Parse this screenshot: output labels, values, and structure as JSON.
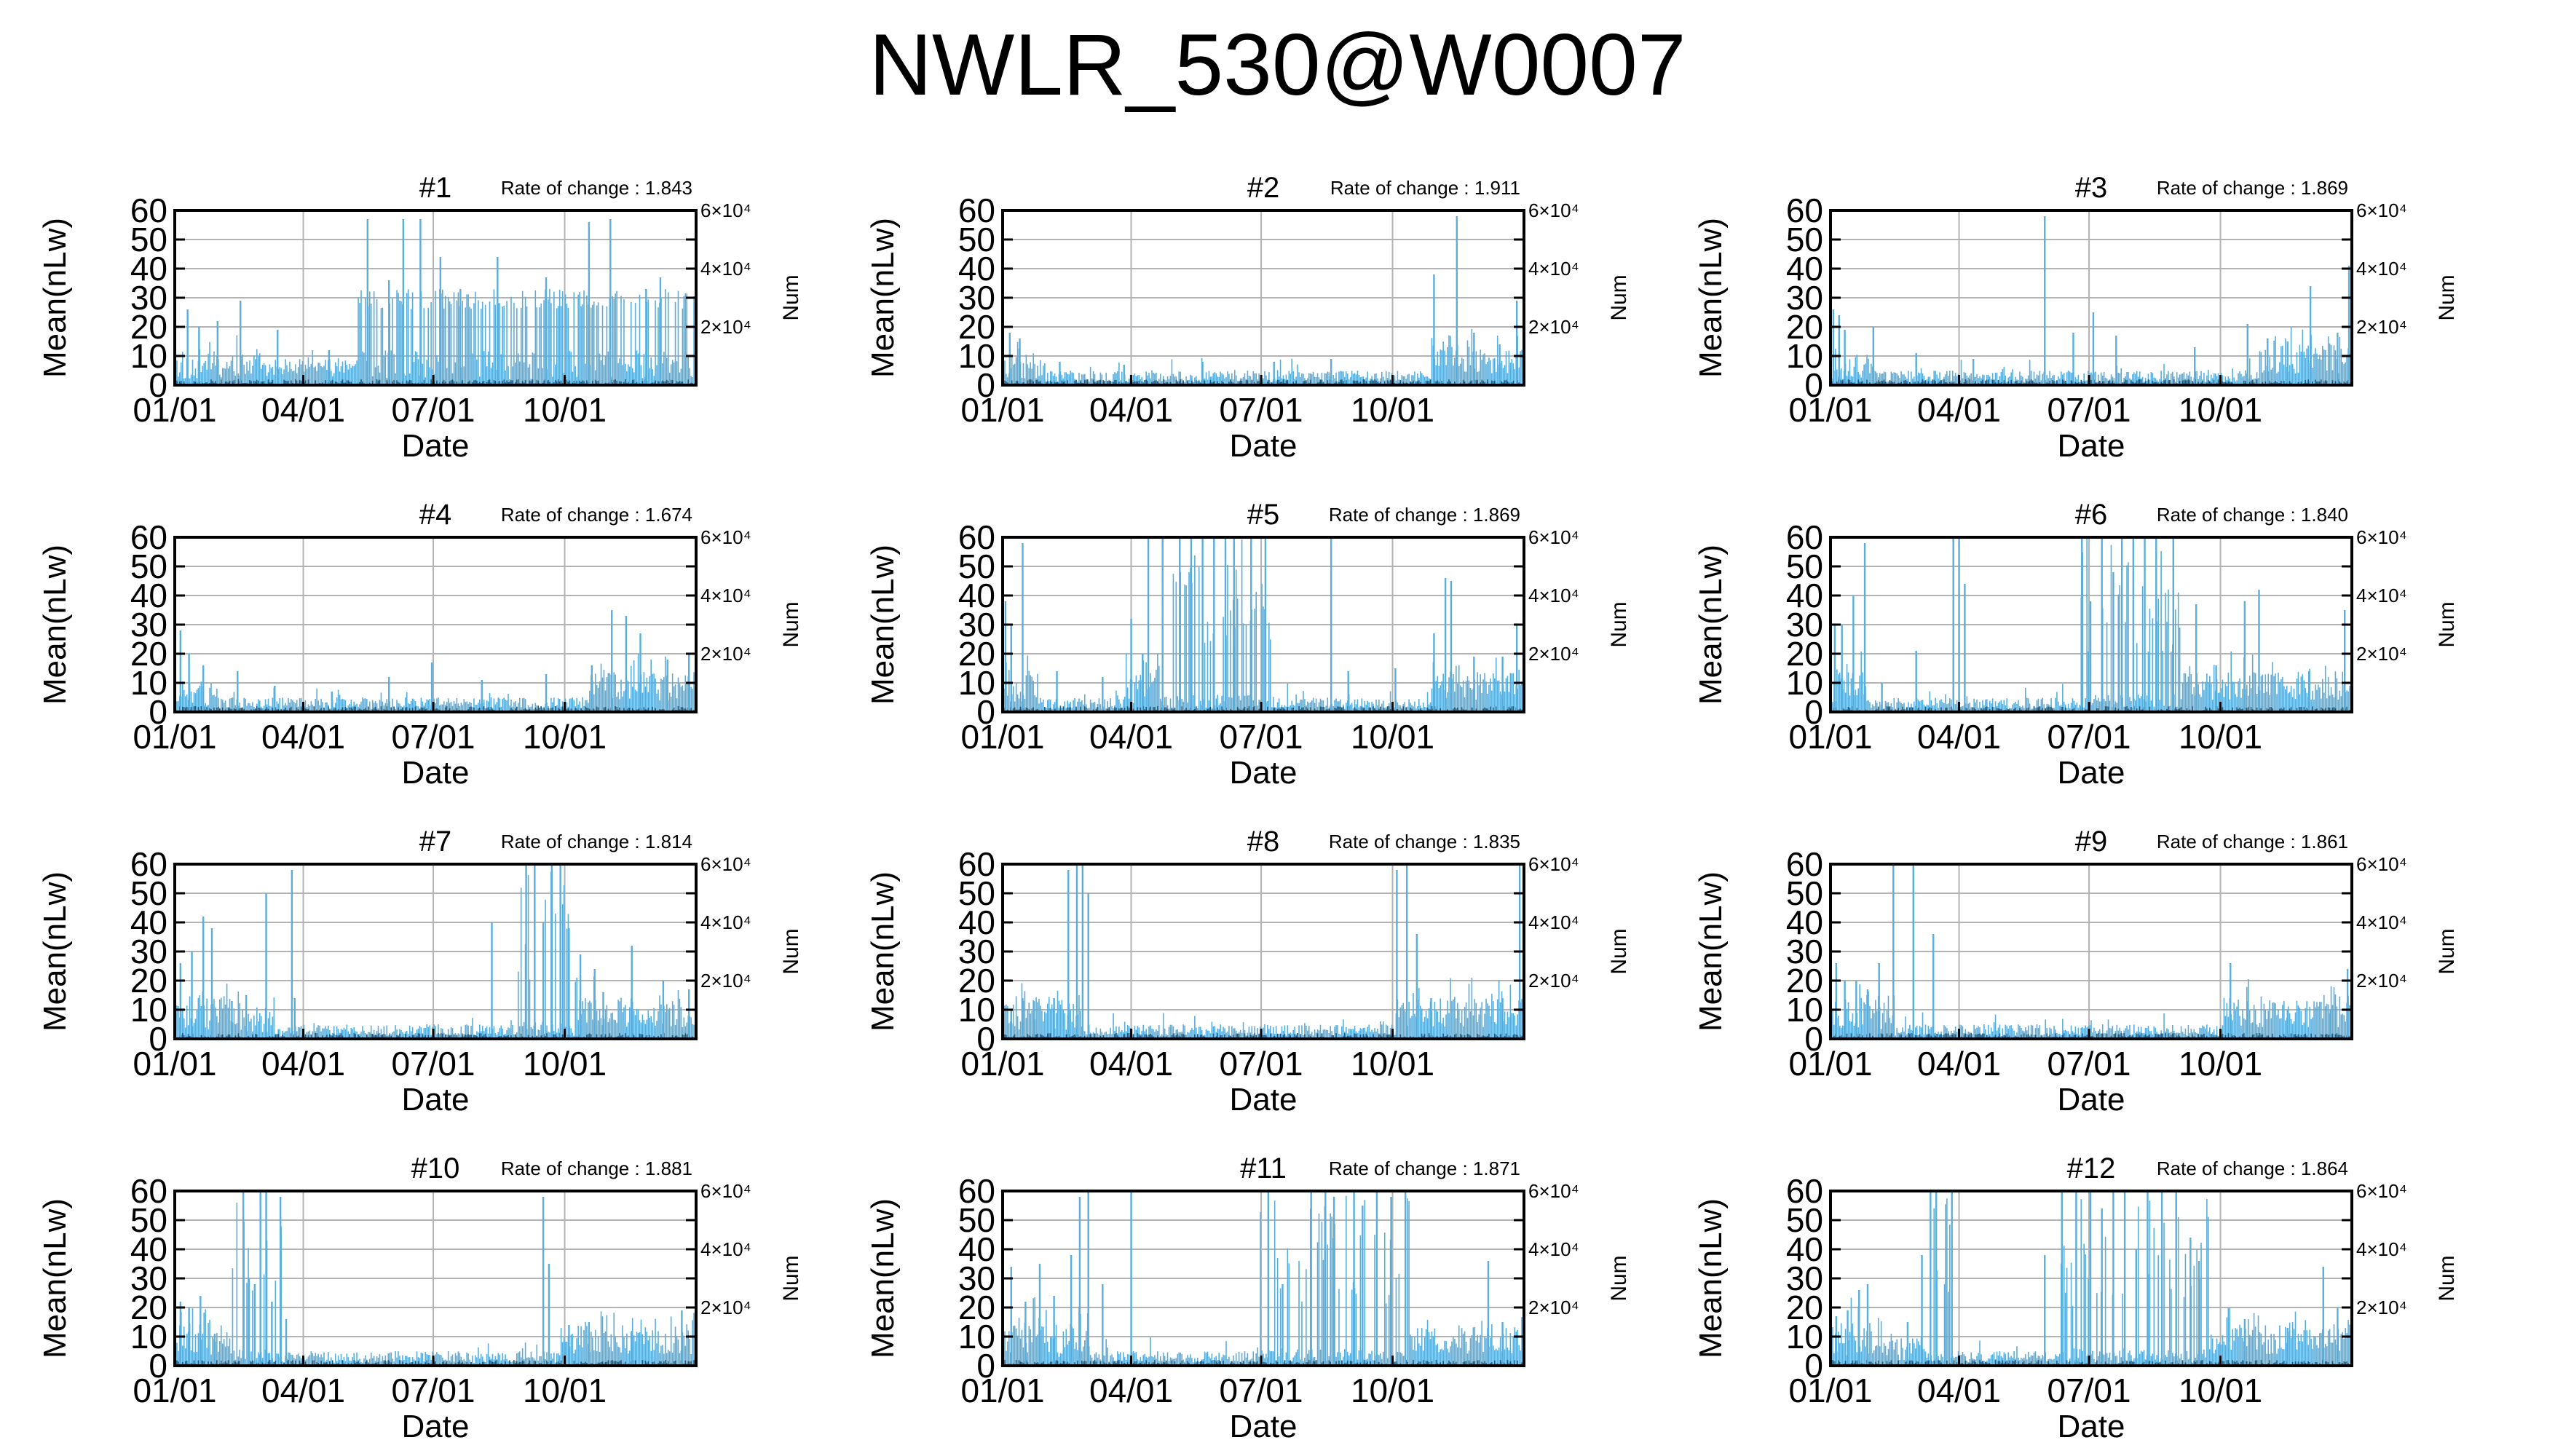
{
  "title": "NWLR_530@W0007",
  "colors": {
    "bar": "#5aaedc",
    "dark": "#1a5a80",
    "axis": "#000000",
    "grid": "#b3b3b3"
  },
  "shared": {
    "xlabel": "Date",
    "ylabel": "Mean(nLw)",
    "y2label": "Num",
    "rate_prefix": "Rate of change : ",
    "y_ticks": [
      0,
      10,
      20,
      30,
      40,
      50,
      60
    ],
    "ylim": [
      0,
      60
    ],
    "x_ticks": [
      "01/01",
      "04/01",
      "07/01",
      "10/01"
    ],
    "x_domain_days": [
      0,
      365
    ],
    "x_tick_days": [
      0,
      90,
      181,
      273
    ],
    "y2_ticks": [
      "2×10⁴",
      "4×10⁴",
      "6×10⁴"
    ],
    "y2_values": [
      20000,
      40000,
      60000
    ],
    "y2lim": [
      0,
      60000
    ]
  },
  "chart_data": [
    {
      "type": "bar",
      "title": "#1",
      "rate": "1.843",
      "profile": [
        [
          0,
          60,
          "low"
        ],
        [
          60,
          125,
          "low2"
        ],
        [
          125,
          365,
          "high"
        ]
      ],
      "spikes": [
        [
          9,
          26
        ],
        [
          17,
          20
        ],
        [
          30,
          22
        ],
        [
          46,
          29
        ],
        [
          72,
          19
        ],
        [
          108,
          12
        ],
        [
          135,
          57
        ],
        [
          150,
          36
        ],
        [
          160,
          57
        ],
        [
          172,
          57
        ],
        [
          186,
          44
        ],
        [
          200,
          33
        ],
        [
          226,
          44
        ],
        [
          260,
          37
        ],
        [
          290,
          56
        ],
        [
          305,
          57
        ],
        [
          330,
          33
        ],
        [
          340,
          37
        ]
      ],
      "seed": 11
    },
    {
      "type": "bar",
      "title": "#2",
      "rate": "1.911",
      "profile": [
        [
          0,
          30,
          "low"
        ],
        [
          30,
          300,
          "vlow"
        ],
        [
          300,
          365,
          "rise"
        ]
      ],
      "spikes": [
        [
          5,
          18
        ],
        [
          12,
          16
        ],
        [
          40,
          8
        ],
        [
          85,
          7
        ],
        [
          140,
          8
        ],
        [
          190,
          8
        ],
        [
          230,
          9
        ],
        [
          302,
          38
        ],
        [
          318,
          58
        ],
        [
          330,
          18
        ],
        [
          348,
          14
        ],
        [
          360,
          29
        ]
      ],
      "seed": 23
    },
    {
      "type": "bar",
      "title": "#3",
      "rate": "1.869",
      "profile": [
        [
          0,
          30,
          "low"
        ],
        [
          30,
          300,
          "vlow"
        ],
        [
          300,
          365,
          "rise"
        ]
      ],
      "spikes": [
        [
          2,
          26
        ],
        [
          6,
          24
        ],
        [
          10,
          19
        ],
        [
          30,
          20
        ],
        [
          60,
          11
        ],
        [
          100,
          9
        ],
        [
          150,
          58
        ],
        [
          170,
          18
        ],
        [
          184,
          25
        ],
        [
          200,
          17
        ],
        [
          255,
          13
        ],
        [
          292,
          21
        ],
        [
          306,
          16
        ],
        [
          320,
          15
        ],
        [
          336,
          34
        ],
        [
          355,
          18
        ],
        [
          363,
          41
        ]
      ],
      "seed": 37
    },
    {
      "type": "bar",
      "title": "#4",
      "rate": "1.674",
      "profile": [
        [
          0,
          30,
          "low"
        ],
        [
          30,
          290,
          "vlow"
        ],
        [
          290,
          365,
          "rise"
        ]
      ],
      "spikes": [
        [
          4,
          28
        ],
        [
          10,
          20
        ],
        [
          20,
          16
        ],
        [
          44,
          14
        ],
        [
          70,
          9
        ],
        [
          110,
          7
        ],
        [
          150,
          12
        ],
        [
          180,
          17
        ],
        [
          215,
          11
        ],
        [
          260,
          13
        ],
        [
          292,
          16
        ],
        [
          306,
          35
        ],
        [
          316,
          33
        ],
        [
          326,
          27
        ],
        [
          345,
          18
        ],
        [
          360,
          20
        ]
      ],
      "seed": 41
    },
    {
      "type": "bar",
      "title": "#5",
      "rate": "1.869",
      "profile": [
        [
          0,
          25,
          "mid"
        ],
        [
          25,
          85,
          "vlow"
        ],
        [
          85,
          110,
          "mid"
        ],
        [
          110,
          190,
          "wild"
        ],
        [
          190,
          300,
          "vlow"
        ],
        [
          300,
          365,
          "rise"
        ]
      ],
      "spikes": [
        [
          2,
          38
        ],
        [
          6,
          30
        ],
        [
          14,
          58
        ],
        [
          38,
          14
        ],
        [
          70,
          12
        ],
        [
          90,
          32
        ],
        [
          98,
          20
        ],
        [
          102,
          60
        ],
        [
          112,
          60
        ],
        [
          124,
          60
        ],
        [
          132,
          60
        ],
        [
          140,
          60
        ],
        [
          148,
          60
        ],
        [
          156,
          60
        ],
        [
          162,
          60
        ],
        [
          174,
          60
        ],
        [
          184,
          60
        ],
        [
          230,
          60
        ],
        [
          242,
          14
        ],
        [
          275,
          15
        ],
        [
          302,
          27
        ],
        [
          310,
          46
        ],
        [
          314,
          45
        ],
        [
          330,
          19
        ],
        [
          350,
          19
        ],
        [
          360,
          30
        ]
      ],
      "seed": 53
    },
    {
      "type": "bar",
      "title": "#6",
      "rate": "1.840",
      "profile": [
        [
          0,
          25,
          "mid"
        ],
        [
          25,
          175,
          "vlow"
        ],
        [
          175,
          245,
          "wild"
        ],
        [
          245,
          365,
          "rise"
        ]
      ],
      "spikes": [
        [
          3,
          30
        ],
        [
          8,
          30
        ],
        [
          16,
          40
        ],
        [
          24,
          58
        ],
        [
          36,
          10
        ],
        [
          60,
          21
        ],
        [
          86,
          60
        ],
        [
          90,
          60
        ],
        [
          94,
          44
        ],
        [
          176,
          60
        ],
        [
          182,
          38
        ],
        [
          190,
          60
        ],
        [
          198,
          48
        ],
        [
          204,
          60
        ],
        [
          212,
          60
        ],
        [
          220,
          60
        ],
        [
          228,
          60
        ],
        [
          240,
          60
        ],
        [
          256,
          37
        ],
        [
          270,
          16
        ],
        [
          290,
          38
        ],
        [
          300,
          42
        ],
        [
          335,
          14
        ],
        [
          360,
          35
        ]
      ],
      "seed": 67
    },
    {
      "type": "bar",
      "title": "#7",
      "rate": "1.814",
      "profile": [
        [
          0,
          40,
          "mid"
        ],
        [
          40,
          70,
          "low"
        ],
        [
          70,
          240,
          "vlow"
        ],
        [
          240,
          280,
          "wild"
        ],
        [
          280,
          365,
          "rise"
        ]
      ],
      "spikes": [
        [
          4,
          26
        ],
        [
          12,
          30
        ],
        [
          20,
          42
        ],
        [
          26,
          38
        ],
        [
          40,
          13
        ],
        [
          50,
          15
        ],
        [
          64,
          50
        ],
        [
          82,
          58
        ],
        [
          84,
          14
        ],
        [
          222,
          40
        ],
        [
          246,
          60
        ],
        [
          252,
          60
        ],
        [
          258,
          40
        ],
        [
          264,
          60
        ],
        [
          270,
          60
        ],
        [
          276,
          38
        ],
        [
          284,
          29
        ],
        [
          294,
          24
        ],
        [
          300,
          16
        ],
        [
          320,
          32
        ],
        [
          342,
          20
        ],
        [
          360,
          17
        ]
      ],
      "seed": 71
    },
    {
      "type": "bar",
      "title": "#8",
      "rate": "1.835",
      "profile": [
        [
          0,
          55,
          "mid"
        ],
        [
          55,
          275,
          "vlow"
        ],
        [
          275,
          365,
          "rise"
        ]
      ],
      "spikes": [
        [
          6,
          10
        ],
        [
          14,
          14
        ],
        [
          22,
          13
        ],
        [
          36,
          14
        ],
        [
          46,
          58
        ],
        [
          52,
          60
        ],
        [
          56,
          60
        ],
        [
          60,
          50
        ],
        [
          276,
          58
        ],
        [
          283,
          60
        ],
        [
          290,
          36
        ],
        [
          300,
          14
        ],
        [
          350,
          14
        ],
        [
          362,
          62
        ]
      ],
      "seed": 83
    },
    {
      "type": "bar",
      "title": "#9",
      "rate": "1.861",
      "profile": [
        [
          0,
          45,
          "mid"
        ],
        [
          45,
          275,
          "vlow"
        ],
        [
          275,
          365,
          "rise"
        ]
      ],
      "spikes": [
        [
          4,
          26
        ],
        [
          10,
          20
        ],
        [
          18,
          20
        ],
        [
          26,
          17
        ],
        [
          34,
          26
        ],
        [
          44,
          60
        ],
        [
          58,
          60
        ],
        [
          72,
          36
        ],
        [
          280,
          26
        ],
        [
          292,
          13
        ],
        [
          320,
          10
        ],
        [
          350,
          10
        ],
        [
          362,
          24
        ]
      ],
      "seed": 97
    },
    {
      "type": "bar",
      "title": "#10",
      "rate": "1.881",
      "profile": [
        [
          0,
          40,
          "mid"
        ],
        [
          40,
          75,
          "wild"
        ],
        [
          75,
          270,
          "vlow"
        ],
        [
          270,
          365,
          "rise"
        ]
      ],
      "spikes": [
        [
          4,
          22
        ],
        [
          10,
          20
        ],
        [
          18,
          24
        ],
        [
          28,
          11
        ],
        [
          48,
          60
        ],
        [
          52,
          30
        ],
        [
          56,
          28
        ],
        [
          60,
          60
        ],
        [
          64,
          60
        ],
        [
          68,
          22
        ],
        [
          74,
          58
        ],
        [
          78,
          16
        ],
        [
          258,
          58
        ],
        [
          262,
          35
        ],
        [
          276,
          14
        ],
        [
          290,
          15
        ],
        [
          320,
          12
        ],
        [
          355,
          19
        ]
      ],
      "seed": 101
    },
    {
      "type": "bar",
      "title": "#11",
      "rate": "1.871",
      "profile": [
        [
          0,
          60,
          "mid"
        ],
        [
          60,
          180,
          "vlow"
        ],
        [
          180,
          285,
          "wild"
        ],
        [
          285,
          365,
          "rise"
        ]
      ],
      "spikes": [
        [
          6,
          34
        ],
        [
          16,
          22
        ],
        [
          26,
          35
        ],
        [
          36,
          24
        ],
        [
          48,
          38
        ],
        [
          54,
          58
        ],
        [
          60,
          60
        ],
        [
          70,
          28
        ],
        [
          90,
          60
        ],
        [
          186,
          60
        ],
        [
          196,
          28
        ],
        [
          216,
          60
        ],
        [
          226,
          60
        ],
        [
          232,
          58
        ],
        [
          246,
          60
        ],
        [
          252,
          55
        ],
        [
          262,
          60
        ],
        [
          272,
          58
        ],
        [
          282,
          60
        ],
        [
          340,
          36
        ],
        [
          350,
          15
        ]
      ],
      "seed": 113
    },
    {
      "type": "bar",
      "title": "#12",
      "rate": "1.864",
      "profile": [
        [
          0,
          40,
          "mid"
        ],
        [
          40,
          65,
          "low"
        ],
        [
          65,
          85,
          "wild"
        ],
        [
          85,
          160,
          "vlow"
        ],
        [
          160,
          265,
          "wild"
        ],
        [
          265,
          365,
          "rise"
        ]
      ],
      "spikes": [
        [
          4,
          17
        ],
        [
          12,
          19
        ],
        [
          20,
          26
        ],
        [
          26,
          28
        ],
        [
          54,
          15
        ],
        [
          64,
          38
        ],
        [
          70,
          60
        ],
        [
          74,
          60
        ],
        [
          80,
          28
        ],
        [
          85,
          60
        ],
        [
          150,
          38
        ],
        [
          162,
          60
        ],
        [
          172,
          60
        ],
        [
          182,
          60
        ],
        [
          190,
          54
        ],
        [
          198,
          60
        ],
        [
          206,
          60
        ],
        [
          214,
          40
        ],
        [
          222,
          60
        ],
        [
          232,
          60
        ],
        [
          242,
          60
        ],
        [
          252,
          44
        ],
        [
          258,
          36
        ],
        [
          290,
          16
        ],
        [
          320,
          13
        ],
        [
          345,
          34
        ],
        [
          355,
          20
        ]
      ],
      "seed": 127
    }
  ]
}
